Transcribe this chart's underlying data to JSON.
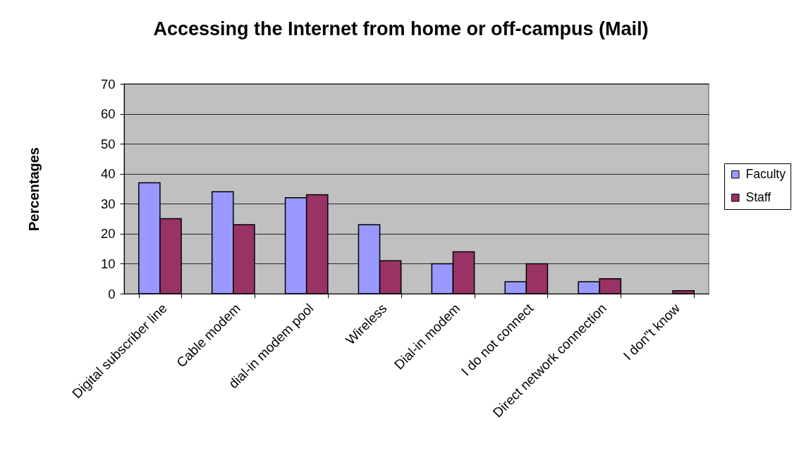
{
  "chart_data": {
    "type": "bar",
    "title": "Accessing the Internet from home or off-campus (Mail)",
    "ylabel": "Percentages",
    "categories": [
      "Digital subscriber line",
      "Cable modem",
      "dial-in modem pool",
      "Wireless",
      "Dial-in modem",
      "I do not connect",
      "Direct network connection",
      "I don\"t know"
    ],
    "series": [
      {
        "name": "Faculty",
        "color": "#9999ff",
        "values": [
          37,
          34,
          32,
          23,
          10,
          4,
          4,
          null
        ]
      },
      {
        "name": "Staff",
        "color": "#993366",
        "values": [
          25,
          23,
          33,
          11,
          14,
          10,
          5,
          1
        ]
      }
    ],
    "ylim": [
      0,
      70
    ],
    "yticks": [
      0,
      10,
      20,
      30,
      40,
      50,
      60,
      70
    ],
    "grid": "y",
    "legend": "right"
  }
}
